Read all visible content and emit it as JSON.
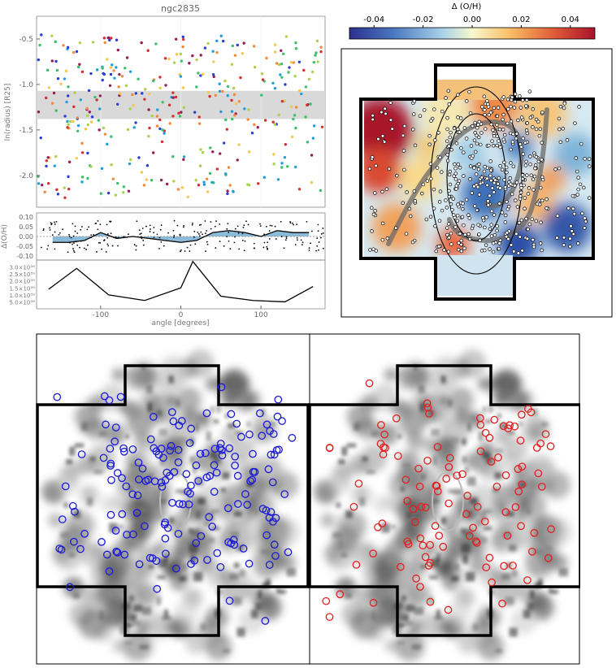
{
  "figure": {
    "title": "ngc2835"
  },
  "chart_data": [
    {
      "id": "radius-vs-angle",
      "type": "scatter",
      "title": "ngc2835",
      "xlabel": "",
      "ylabel": "ln(radius) [R25]",
      "xlim": [
        -180,
        180
      ],
      "ylim": [
        -2.35,
        -0.25
      ],
      "y_inverted": false,
      "yticks": [
        "-0.5",
        "-1.0",
        "-1.5",
        "-2.0"
      ],
      "ytick_values": [
        -0.5,
        -1.0,
        -1.5,
        -2.0
      ],
      "shaded_band": [
        -1.38,
        -1.07
      ],
      "grid": true,
      "point_colors": [
        "#2a3fd4",
        "#1f9ed9",
        "#3bbf6a",
        "#a8d34a",
        "#f2c94c",
        "#f08a3c",
        "#d62f2f",
        "#9a1b5a"
      ]
    },
    {
      "id": "delta-oh-vs-angle",
      "type": "line",
      "ylabel": "Δ(O/H)",
      "xlim": [
        -180,
        180
      ],
      "ylim": [
        -0.12,
        0.12
      ],
      "yticks": [
        "0.10",
        "0.05",
        "0.00",
        "-0.05",
        "-0.10"
      ],
      "ytick_values": [
        0.1,
        0.05,
        0.0,
        -0.05,
        -0.1
      ],
      "series": [
        {
          "x": [
            -160,
            -140,
            -120,
            -100,
            -80,
            -60,
            -40,
            -20,
            0,
            20,
            40,
            60,
            80,
            100,
            120,
            140,
            160
          ],
          "y": [
            -0.03,
            -0.03,
            -0.02,
            0.02,
            -0.01,
            0.0,
            -0.01,
            -0.02,
            -0.03,
            -0.02,
            0.02,
            0.03,
            0.02,
            0.0,
            0.03,
            0.02,
            0.02
          ]
        }
      ],
      "band_color": "#7fb3d5"
    },
    {
      "id": "flux-vs-angle",
      "type": "line",
      "xlabel": "angle [degrees]",
      "xlim": [
        -180,
        180
      ],
      "xticks": [
        "-100",
        "0",
        "100"
      ],
      "xtick_values": [
        -100,
        0,
        100
      ],
      "yticks": [
        "3.0×10³⁹",
        "2.5×10³⁹",
        "2.0×10³⁹",
        "1.5×10³⁹",
        "1.0×10³⁹",
        "5.0×10³⁸"
      ],
      "ytick_values": [
        3e+39,
        2.5e+39,
        2e+39,
        1.5e+39,
        1e+39,
        5e+38
      ],
      "ylim": [
        0,
        3.5e+39
      ],
      "series": [
        {
          "x": [
            -165,
            -130,
            -90,
            -45,
            0,
            15,
            50,
            90,
            130,
            165
          ],
          "y": [
            1.4e+39,
            2.9e+39,
            1e+39,
            6e+38,
            1.5e+39,
            3.4e+39,
            9e+38,
            6e+38,
            5e+38,
            1.6e+39
          ]
        }
      ]
    },
    {
      "id": "delta-oh-map",
      "type": "heatmap",
      "colorbar": {
        "label": "Δ (O/H)",
        "ticks": [
          "-0.04",
          "-0.02",
          "0.00",
          "0.02",
          "0.04"
        ],
        "tick_values": [
          -0.04,
          -0.02,
          0.0,
          0.02,
          0.04
        ],
        "range": [
          -0.05,
          0.05
        ],
        "colors": [
          "#2c4fa6",
          "#5b8fc9",
          "#a9d2e8",
          "#f5f5c8",
          "#f9c067",
          "#e3623a",
          "#a8122a"
        ]
      }
    },
    {
      "id": "ha-map-blue",
      "type": "scatter",
      "marker_color": "#1a1ad6"
    },
    {
      "id": "ha-map-red",
      "type": "scatter",
      "marker_color": "#e21f1f"
    }
  ]
}
